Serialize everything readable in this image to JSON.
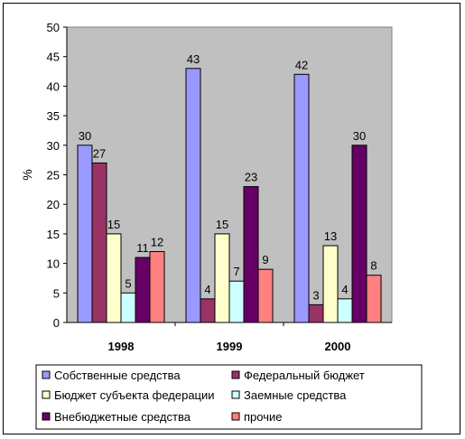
{
  "chart_data": {
    "type": "bar",
    "categories": [
      "1998",
      "1999",
      "2000"
    ],
    "series": [
      {
        "name": "Собственные средства",
        "color": "#9999ff",
        "values": [
          30,
          43,
          42
        ]
      },
      {
        "name": "Федеральный бюджет",
        "color": "#993366",
        "values": [
          27,
          4,
          3
        ]
      },
      {
        "name": "Бюджет субъекта федерации",
        "color": "#ffffcc",
        "values": [
          15,
          15,
          13
        ]
      },
      {
        "name": "Заемные средства",
        "color": "#ccffff",
        "values": [
          5,
          7,
          4
        ]
      },
      {
        "name": "Внебюджетные средства",
        "color": "#660066",
        "values": [
          11,
          23,
          30
        ]
      },
      {
        "name": "прочие",
        "color": "#ff8080",
        "values": [
          12,
          9,
          8
        ]
      }
    ],
    "ylabel": "%",
    "ylim": [
      0,
      50
    ],
    "yticks": [
      "0",
      "5",
      "10",
      "15",
      "20",
      "25",
      "30",
      "35",
      "40",
      "45",
      "50"
    ],
    "plot_background": "#c0c0c0",
    "grid": false,
    "legend_position": "bottom",
    "data_labels": true
  }
}
